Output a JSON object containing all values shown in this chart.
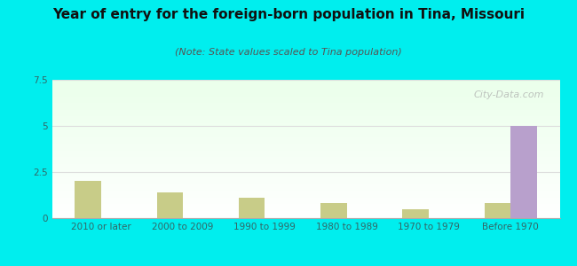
{
  "title": "Year of entry for the foreign-born population in Tina, Missouri",
  "subtitle": "(Note: State values scaled to Tina population)",
  "categories": [
    "2010 or later",
    "2000 to 2009",
    "1990 to 1999",
    "1980 to 1989",
    "1970 to 1979",
    "Before 1970"
  ],
  "tina_values": [
    0,
    0,
    0,
    0,
    0,
    5.0
  ],
  "missouri_values": [
    2.0,
    1.4,
    1.1,
    0.8,
    0.5,
    0.8
  ],
  "tina_color": "#b8a0cc",
  "missouri_color": "#c8cc88",
  "background_color": "#00eeee",
  "ylim": [
    0,
    7.5
  ],
  "yticks": [
    0,
    2.5,
    5,
    7.5
  ],
  "bar_width": 0.32,
  "title_fontsize": 11,
  "subtitle_fontsize": 8,
  "tick_fontsize": 7.5,
  "legend_fontsize": 9,
  "watermark": "City-Data.com",
  "grid_color": "#dddddd",
  "tick_color": "#336666",
  "title_color": "#111111",
  "subtitle_color": "#555555"
}
